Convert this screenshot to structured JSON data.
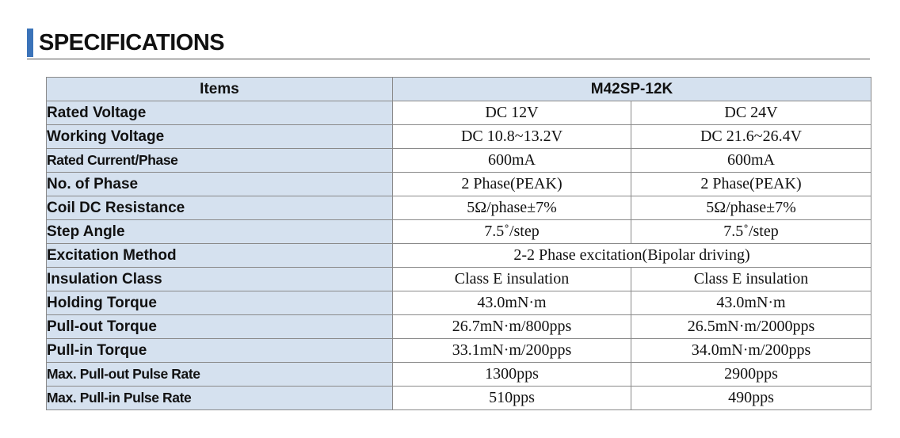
{
  "heading": {
    "title": "SPECIFICATIONS"
  },
  "table": {
    "col_items": "Items",
    "col_model": "M42SP-12K",
    "rows": [
      {
        "item": "Rated Voltage",
        "v1": "DC 12V",
        "v2": "DC 24V"
      },
      {
        "item": "Working Voltage",
        "v1": "DC 10.8~13.2V",
        "v2": "DC 21.6~26.4V"
      },
      {
        "item": "Rated Current/Phase",
        "v1": "600mA",
        "v2": "600mA"
      },
      {
        "item": "No. of Phase",
        "v1": "2 Phase(PEAK)",
        "v2": "2 Phase(PEAK)"
      },
      {
        "item": "Coil DC Resistance",
        "v1": "5Ω/phase±7%",
        "v2": "5Ω/phase±7%"
      },
      {
        "item": "Step Angle",
        "v1": "7.5˚/step",
        "v2": "7.5˚/step"
      },
      {
        "item": "Excitation Method",
        "merged": "2-2 Phase excitation(Bipolar driving)"
      },
      {
        "item": "Insulation Class",
        "v1": "Class E insulation",
        "v2": "Class E insulation"
      },
      {
        "item": "Holding Torque",
        "v1": "43.0mN·m",
        "v2": "43.0mN·m"
      },
      {
        "item": "Pull-out Torque",
        "v1": "26.7mN·m/800pps",
        "v2": "26.5mN·m/2000pps"
      },
      {
        "item": "Pull-in Torque",
        "v1": "33.1mN·m/200pps",
        "v2": "34.0mN·m/200pps"
      },
      {
        "item": "Max. Pull-out Pulse Rate",
        "v1": "1300pps",
        "v2": "2900pps"
      },
      {
        "item": "Max. Pull-in Pulse Rate",
        "v1": "510pps",
        "v2": "490pps"
      }
    ]
  },
  "colors": {
    "accent": "#3b73b9",
    "header_fill": "#d5e1ef",
    "border": "#8a8a8a"
  }
}
